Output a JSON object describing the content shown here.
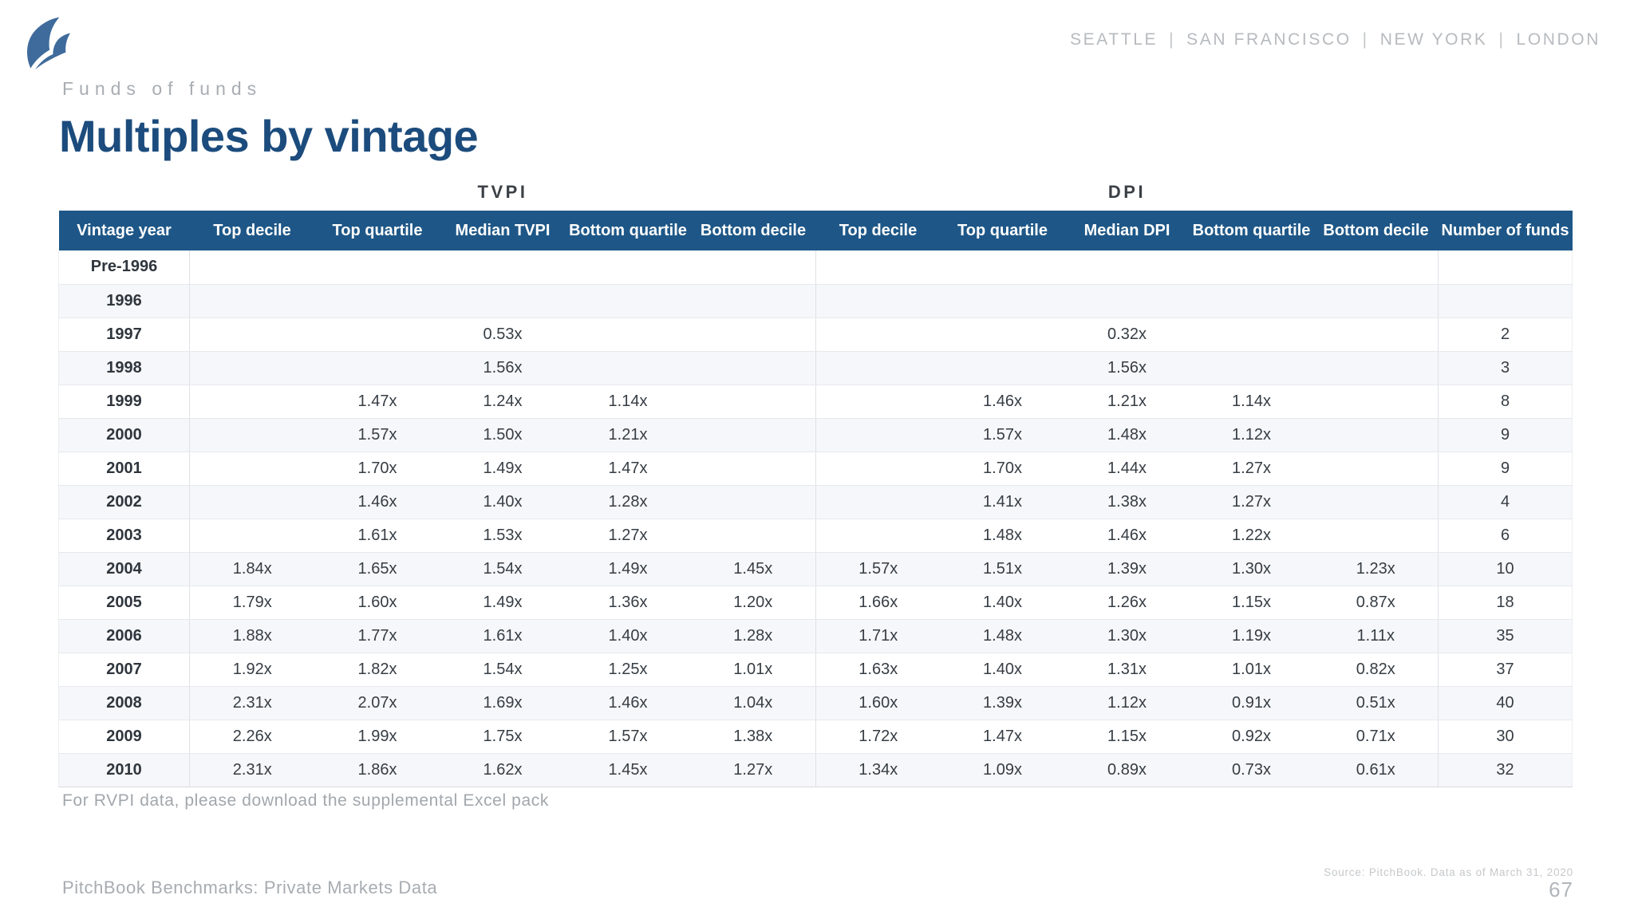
{
  "header": {
    "logo": "pitchbook-logo",
    "cities": [
      "SEATTLE",
      "SAN FRANCISCO",
      "NEW YORK",
      "LONDON"
    ],
    "eyebrow": "Funds of funds",
    "title": "Multiples by vintage"
  },
  "colors": {
    "table_header_bg": "#1e5787",
    "title_blue": "#1c4c7d",
    "stripe_row": "#f6f7fa",
    "logo_blue": "#3f6b9c"
  },
  "table": {
    "group_headers": [
      {
        "label": "TVPI",
        "span": 5
      },
      {
        "label": "DPI",
        "span": 5
      }
    ],
    "columns": [
      "Vintage year",
      "Top decile",
      "Top quartile",
      "Median TVPI",
      "Bottom quartile",
      "Bottom decile",
      "Top decile",
      "Top quartile",
      "Median DPI",
      "Bottom quartile",
      "Bottom decile",
      "Number of funds"
    ],
    "rows": [
      {
        "year": "Pre-1996",
        "values": [
          "",
          "",
          "",
          "",
          "",
          "",
          "",
          "",
          "",
          "",
          ""
        ]
      },
      {
        "year": "1996",
        "values": [
          "",
          "",
          "",
          "",
          "",
          "",
          "",
          "",
          "",
          "",
          ""
        ]
      },
      {
        "year": "1997",
        "values": [
          "",
          "",
          "0.53x",
          "",
          "",
          "",
          "",
          "0.32x",
          "",
          "",
          "2"
        ]
      },
      {
        "year": "1998",
        "values": [
          "",
          "",
          "1.56x",
          "",
          "",
          "",
          "",
          "1.56x",
          "",
          "",
          "3"
        ]
      },
      {
        "year": "1999",
        "values": [
          "",
          "1.47x",
          "1.24x",
          "1.14x",
          "",
          "",
          "1.46x",
          "1.21x",
          "1.14x",
          "",
          "8"
        ]
      },
      {
        "year": "2000",
        "values": [
          "",
          "1.57x",
          "1.50x",
          "1.21x",
          "",
          "",
          "1.57x",
          "1.48x",
          "1.12x",
          "",
          "9"
        ]
      },
      {
        "year": "2001",
        "values": [
          "",
          "1.70x",
          "1.49x",
          "1.47x",
          "",
          "",
          "1.70x",
          "1.44x",
          "1.27x",
          "",
          "9"
        ]
      },
      {
        "year": "2002",
        "values": [
          "",
          "1.46x",
          "1.40x",
          "1.28x",
          "",
          "",
          "1.41x",
          "1.38x",
          "1.27x",
          "",
          "4"
        ]
      },
      {
        "year": "2003",
        "values": [
          "",
          "1.61x",
          "1.53x",
          "1.27x",
          "",
          "",
          "1.48x",
          "1.46x",
          "1.22x",
          "",
          "6"
        ]
      },
      {
        "year": "2004",
        "values": [
          "1.84x",
          "1.65x",
          "1.54x",
          "1.49x",
          "1.45x",
          "1.57x",
          "1.51x",
          "1.39x",
          "1.30x",
          "1.23x",
          "10"
        ]
      },
      {
        "year": "2005",
        "values": [
          "1.79x",
          "1.60x",
          "1.49x",
          "1.36x",
          "1.20x",
          "1.66x",
          "1.40x",
          "1.26x",
          "1.15x",
          "0.87x",
          "18"
        ]
      },
      {
        "year": "2006",
        "values": [
          "1.88x",
          "1.77x",
          "1.61x",
          "1.40x",
          "1.28x",
          "1.71x",
          "1.48x",
          "1.30x",
          "1.19x",
          "1.11x",
          "35"
        ]
      },
      {
        "year": "2007",
        "values": [
          "1.92x",
          "1.82x",
          "1.54x",
          "1.25x",
          "1.01x",
          "1.63x",
          "1.40x",
          "1.31x",
          "1.01x",
          "0.82x",
          "37"
        ]
      },
      {
        "year": "2008",
        "values": [
          "2.31x",
          "2.07x",
          "1.69x",
          "1.46x",
          "1.04x",
          "1.60x",
          "1.39x",
          "1.12x",
          "0.91x",
          "0.51x",
          "40"
        ]
      },
      {
        "year": "2009",
        "values": [
          "2.26x",
          "1.99x",
          "1.75x",
          "1.57x",
          "1.38x",
          "1.72x",
          "1.47x",
          "1.15x",
          "0.92x",
          "0.71x",
          "30"
        ]
      },
      {
        "year": "2010",
        "values": [
          "2.31x",
          "1.86x",
          "1.62x",
          "1.45x",
          "1.27x",
          "1.34x",
          "1.09x",
          "0.89x",
          "0.73x",
          "0.61x",
          "32"
        ]
      }
    ]
  },
  "footnote": "For RVPI data, please download the supplemental Excel pack",
  "footer": {
    "left_text": "PitchBook Benchmarks: Private Markets Data",
    "source": "Source: PitchBook. Data as of March 31, 2020",
    "page_number": "67"
  }
}
